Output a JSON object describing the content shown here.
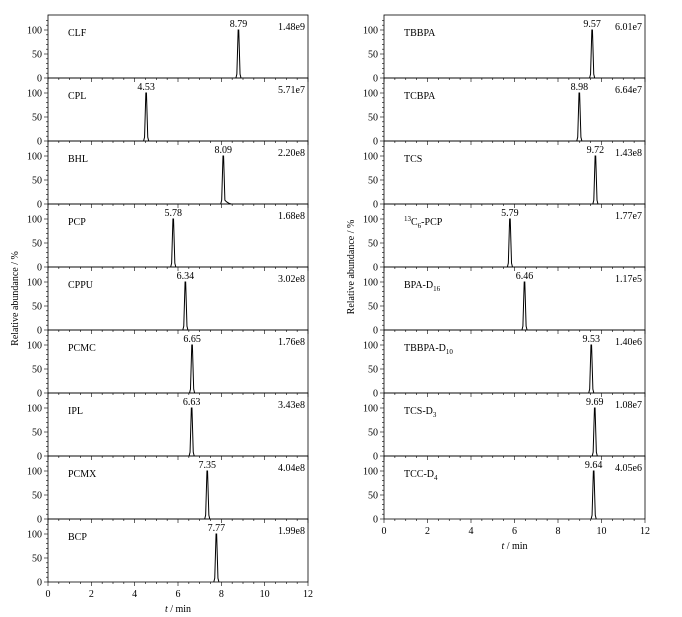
{
  "chart_data": [
    {
      "type": "line",
      "title": "",
      "xlabel_italic": "t",
      "xlabel_rest": " / min",
      "ylabel": "Relative abundance / %",
      "xlim": [
        0,
        12
      ],
      "ylim": [
        0,
        130
      ],
      "xticks": [
        0,
        2,
        4,
        6,
        8,
        10,
        12
      ],
      "yticks": [
        0,
        50,
        100
      ],
      "panels": [
        {
          "label": [
            {
              "t": "CLF"
            }
          ],
          "rt": "8.79",
          "intensity": "1.48e9"
        },
        {
          "label": [
            {
              "t": "CPL"
            }
          ],
          "rt": "4.53",
          "intensity": "5.71e7"
        },
        {
          "label": [
            {
              "t": "BHL"
            }
          ],
          "rt": "8.09",
          "intensity": "2.20e8",
          "tail": true
        },
        {
          "label": [
            {
              "t": "PCP"
            }
          ],
          "rt": "5.78",
          "intensity": "1.68e8"
        },
        {
          "label": [
            {
              "t": "CPPU"
            }
          ],
          "rt": "6.34",
          "intensity": "3.02e8"
        },
        {
          "label": [
            {
              "t": "PCMC"
            }
          ],
          "rt": "6.65",
          "intensity": "1.76e8"
        },
        {
          "label": [
            {
              "t": "IPL"
            }
          ],
          "rt": "6.63",
          "intensity": "3.43e8"
        },
        {
          "label": [
            {
              "t": "PCMX"
            }
          ],
          "rt": "7.35",
          "intensity": "4.04e8"
        },
        {
          "label": [
            {
              "t": "BCP"
            }
          ],
          "rt": "7.77",
          "intensity": "1.99e8"
        }
      ]
    },
    {
      "type": "line",
      "title": "",
      "xlabel_italic": "t",
      "xlabel_rest": " / min",
      "ylabel": "Relative abundance / %",
      "xlim": [
        0,
        12
      ],
      "ylim": [
        0,
        130
      ],
      "xticks": [
        0,
        2,
        4,
        6,
        8,
        10,
        12
      ],
      "yticks": [
        0,
        50,
        100
      ],
      "panels": [
        {
          "label": [
            {
              "t": "TBBPA"
            }
          ],
          "rt": "9.57",
          "intensity": "6.01e7"
        },
        {
          "label": [
            {
              "t": "TCBPA"
            }
          ],
          "rt": "8.98",
          "intensity": "6.64e7"
        },
        {
          "label": [
            {
              "t": "TCS"
            }
          ],
          "rt": "9.72",
          "intensity": "1.43e8"
        },
        {
          "label": [
            {
              "t": "13",
              "s": "sup"
            },
            {
              "t": "C"
            },
            {
              "t": "6",
              "s": "sub"
            },
            {
              "t": "-PCP"
            }
          ],
          "rt": "5.79",
          "intensity": "1.77e7"
        },
        {
          "label": [
            {
              "t": "BPA-D"
            },
            {
              "t": "16",
              "s": "sub"
            }
          ],
          "rt": "6.46",
          "intensity": "1.17e5"
        },
        {
          "label": [
            {
              "t": "TBBPA-D"
            },
            {
              "t": "10",
              "s": "sub"
            }
          ],
          "rt": "9.53",
          "intensity": "1.40e6"
        },
        {
          "label": [
            {
              "t": "TCS-D"
            },
            {
              "t": "3",
              "s": "sub"
            }
          ],
          "rt": "9.69",
          "intensity": "1.08e7"
        },
        {
          "label": [
            {
              "t": "TCC-D"
            },
            {
              "t": "4",
              "s": "sub"
            }
          ],
          "rt": "9.64",
          "intensity": "4.05e6"
        }
      ]
    }
  ]
}
